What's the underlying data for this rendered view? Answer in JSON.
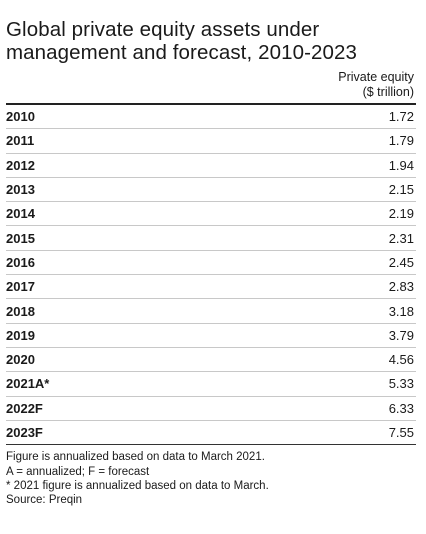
{
  "chart_data": {
    "type": "table",
    "title": "Global private equity assets under management and forecast, 2010-2023",
    "columns": [
      "",
      "Private equity ($ trillion)"
    ],
    "column_header_line1": "Private equity",
    "column_header_line2": "($ trillion)",
    "categories": [
      "2010",
      "2011",
      "2012",
      "2013",
      "2014",
      "2015",
      "2016",
      "2017",
      "2018",
      "2019",
      "2020",
      "2021A*",
      "2022F",
      "2023F"
    ],
    "values": [
      "1.72",
      "1.79",
      "1.94",
      "2.15",
      "2.19",
      "2.31",
      "2.45",
      "2.83",
      "3.18",
      "3.79",
      "4.56",
      "5.33",
      "6.33",
      "7.55"
    ],
    "rows": [
      {
        "year": "2010",
        "value": "1.72"
      },
      {
        "year": "2011",
        "value": "1.79"
      },
      {
        "year": "2012",
        "value": "1.94"
      },
      {
        "year": "2013",
        "value": "2.15"
      },
      {
        "year": "2014",
        "value": "2.19"
      },
      {
        "year": "2015",
        "value": "2.31"
      },
      {
        "year": "2016",
        "value": "2.45"
      },
      {
        "year": "2017",
        "value": "2.83"
      },
      {
        "year": "2018",
        "value": "3.18"
      },
      {
        "year": "2019",
        "value": "3.79"
      },
      {
        "year": "2020",
        "value": "4.56"
      },
      {
        "year": "2021A*",
        "value": "5.33"
      },
      {
        "year": "2022F",
        "value": "6.33"
      },
      {
        "year": "2023F",
        "value": "7.55"
      }
    ],
    "notes": [
      "Figure is annualized based on data to March 2021.",
      "A = annualized; F = forecast",
      "* 2021 figure is annualized based on data to March.",
      "Source: Preqin"
    ]
  }
}
